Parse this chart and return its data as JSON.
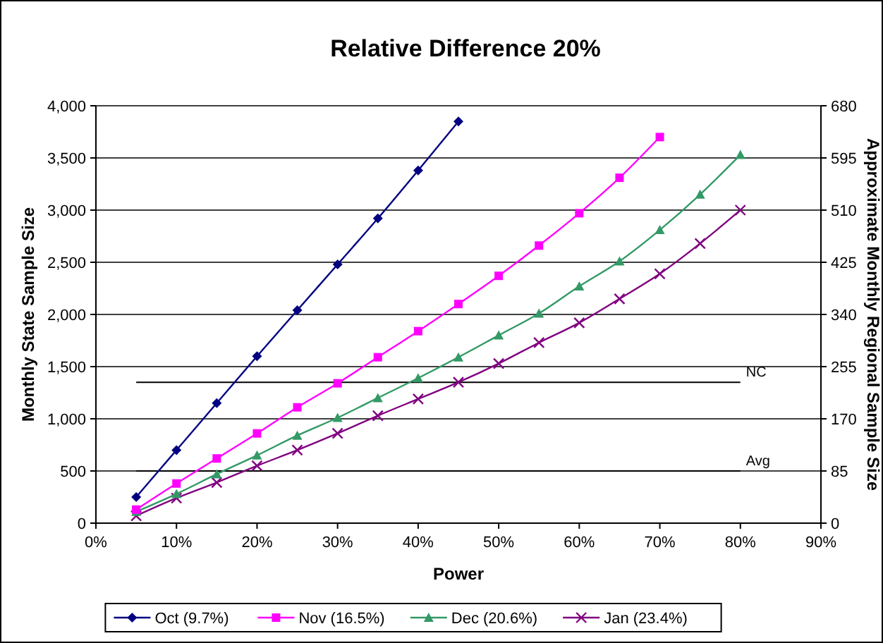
{
  "chart_data": {
    "type": "line",
    "title": "Relative Difference 20%",
    "xlabel": "Power",
    "ylabel": "Monthly State Sample Size",
    "y2label": "Approximate Monthly Regional Sample Size",
    "x": [
      5,
      10,
      15,
      20,
      25,
      30,
      35,
      40,
      45,
      50,
      55,
      60,
      65,
      70,
      75,
      80
    ],
    "series": [
      {
        "name": "Oct (9.7%)",
        "color": "#000080",
        "marker": "diamond",
        "values": [
          250,
          700,
          1150,
          1600,
          2040,
          2480,
          2920,
          3380,
          3850,
          null,
          null,
          null,
          null,
          null,
          null,
          null
        ]
      },
      {
        "name": "Nov (16.5%)",
        "color": "#ff00ff",
        "marker": "square",
        "values": [
          130,
          380,
          620,
          860,
          1110,
          1340,
          1590,
          1840,
          2100,
          2370,
          2660,
          2970,
          3310,
          3700,
          null,
          null
        ]
      },
      {
        "name": "Dec (20.6%)",
        "color": "#339966",
        "marker": "triangle",
        "values": [
          110,
          280,
          470,
          650,
          840,
          1010,
          1200,
          1390,
          1590,
          1800,
          2010,
          2270,
          2510,
          2810,
          3150,
          3530
        ]
      },
      {
        "name": "Jan (23.4%)",
        "color": "#800080",
        "marker": "cross",
        "values": [
          70,
          240,
          390,
          550,
          700,
          860,
          1030,
          1190,
          1350,
          1530,
          1730,
          1920,
          2150,
          2390,
          2680,
          3000
        ]
      }
    ],
    "xlim": [
      0,
      90
    ],
    "xticks": [
      {
        "value": 0,
        "label": "0%"
      },
      {
        "value": 10,
        "label": "10%"
      },
      {
        "value": 20,
        "label": "20%"
      },
      {
        "value": 30,
        "label": "30%"
      },
      {
        "value": 40,
        "label": "40%"
      },
      {
        "value": 50,
        "label": "50%"
      },
      {
        "value": 60,
        "label": "60%"
      },
      {
        "value": 70,
        "label": "70%"
      },
      {
        "value": 80,
        "label": "80%"
      },
      {
        "value": 90,
        "label": "90%"
      }
    ],
    "ylim": [
      0,
      4000
    ],
    "yticks": [
      0,
      500,
      {
        "value": 1000,
        "label": "1,000"
      },
      {
        "value": 1500,
        "label": "1,500"
      },
      {
        "value": 2000,
        "label": "2,000"
      },
      {
        "value": 2500,
        "label": "2,500"
      },
      {
        "value": 3000,
        "label": "3,000"
      },
      {
        "value": 3500,
        "label": "3,500"
      },
      {
        "value": 4000,
        "label": "4,000"
      }
    ],
    "y2lim": [
      0,
      680
    ],
    "y2ticks": [
      0,
      85,
      170,
      255,
      340,
      425,
      510,
      595,
      680
    ],
    "ref_lines": [
      {
        "axis": "y",
        "value": 1350,
        "label": "NC",
        "color": "#000000"
      },
      {
        "axis": "y",
        "value": 500,
        "label": "Avg",
        "color": "#000000"
      }
    ],
    "grid": "y",
    "legend": "bottom"
  }
}
